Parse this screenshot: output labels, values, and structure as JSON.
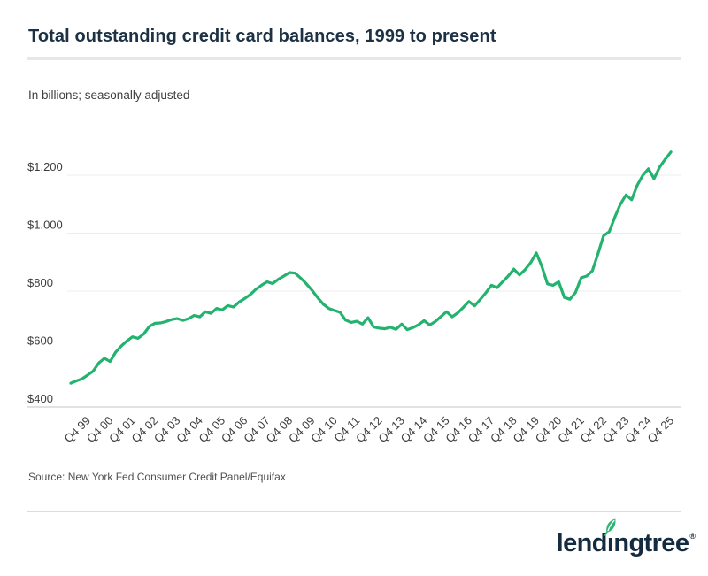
{
  "header": {
    "title": "Total outstanding credit card balances, 1999 to present",
    "subtitle": "In billions; seasonally adjusted"
  },
  "footer": {
    "source": "Source: New York Fed Consumer Credit Panel/Equifax",
    "logo": {
      "text": "lendingtree",
      "pre": "lend",
      "i_glyph": "ı",
      "post": "ngtree",
      "registered": "®",
      "leaf_color": "#2bb673",
      "text_color": "#142b40"
    }
  },
  "chart_data": {
    "type": "line",
    "title": "Total outstanding credit card balances, 1999 to present",
    "subtitle": "In billions; seasonally adjusted",
    "unit": "USD billions",
    "frequency": "quarterly",
    "x_first": "1999 Q1",
    "x_last": "2025 Q4",
    "x_tick_labels": [
      "Q4 99",
      "Q4 00",
      "Q4 01",
      "Q4 02",
      "Q4 03",
      "Q4 04",
      "Q4 05",
      "Q4 06",
      "Q4 07",
      "Q4 08",
      "Q4 09",
      "Q4 10",
      "Q4 11",
      "Q4 12",
      "Q4 13",
      "Q4 14",
      "Q4 15",
      "Q4 16",
      "Q4 17",
      "Q4 18",
      "Q4 19",
      "Q4 20",
      "Q4 21",
      "Q4 22",
      "Q4 23",
      "Q4 24",
      "Q4 25"
    ],
    "y_ticks": [
      400,
      600,
      800,
      1000,
      1200
    ],
    "y_tick_labels": [
      "$400",
      "$600",
      "$800",
      "$1.000",
      "$1.200"
    ],
    "ylim": [
      400,
      1320
    ],
    "grid": true,
    "legend": "none",
    "line_color": "#24b36f",
    "axis_color": "#c6c6c6",
    "grid_color": "#ececec",
    "series": [
      {
        "name": "Total outstanding credit card balances",
        "values": [
          482,
          490,
          497,
          510,
          524,
          552,
          568,
          557,
          589,
          610,
          628,
          642,
          637,
          652,
          678,
          689,
          690,
          695,
          702,
          705,
          699,
          705,
          716,
          711,
          729,
          723,
          740,
          735,
          750,
          745,
          762,
          774,
          788,
          806,
          820,
          832,
          826,
          841,
          852,
          864,
          862,
          845,
          825,
          803,
          778,
          755,
          740,
          733,
          727,
          700,
          692,
          696,
          686,
          708,
          676,
          672,
          670,
          675,
          668,
          686,
          667,
          674,
          684,
          698,
          683,
          695,
          712,
          729,
          711,
          725,
          744,
          764,
          749,
          771,
          794,
          820,
          812,
          832,
          852,
          876,
          856,
          874,
          898,
          932,
          885,
          825,
          820,
          832,
          778,
          772,
          795,
          846,
          852,
          870,
          929,
          991,
          1005,
          1055,
          1100,
          1132,
          1115,
          1165,
          1200,
          1222,
          1188,
          1228,
          1255,
          1280
        ]
      }
    ]
  }
}
